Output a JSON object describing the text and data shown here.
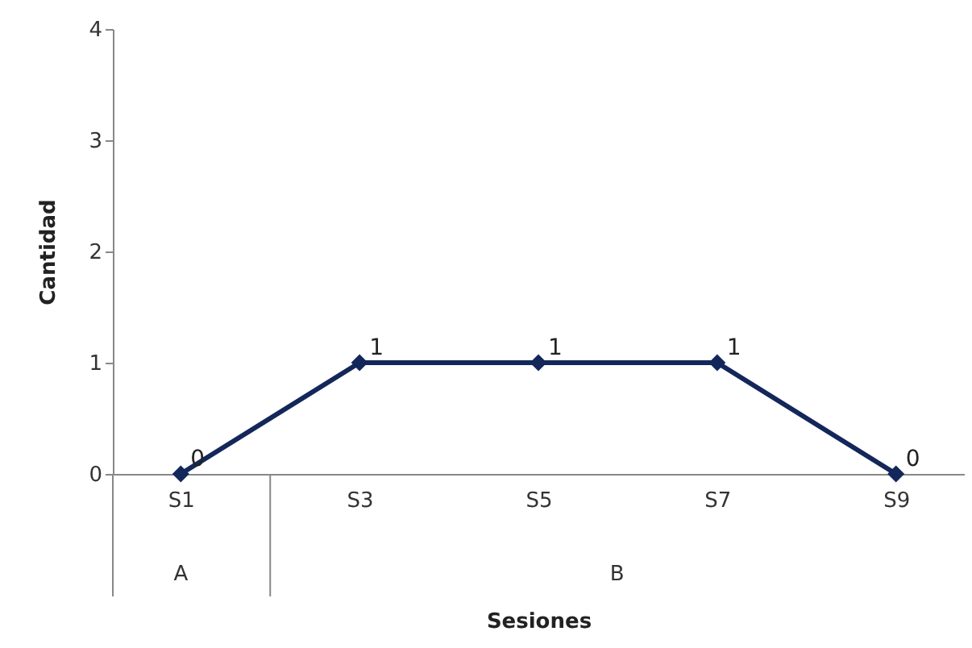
{
  "chart_data": {
    "type": "line",
    "xlabel": "Sesiones",
    "ylabel": "Cantidad",
    "categories": [
      "S1",
      "S3",
      "S5",
      "S7",
      "S9"
    ],
    "series": [
      {
        "color": "#13275a",
        "values": [
          0,
          1,
          1,
          1,
          0
        ]
      }
    ],
    "ylim": [
      0,
      4
    ],
    "yticks": [
      0,
      1,
      2,
      3,
      4
    ],
    "grid": false,
    "marker": "diamond",
    "line_style": "solid",
    "data_labels": true,
    "annotations": [
      "A",
      "B"
    ]
  }
}
